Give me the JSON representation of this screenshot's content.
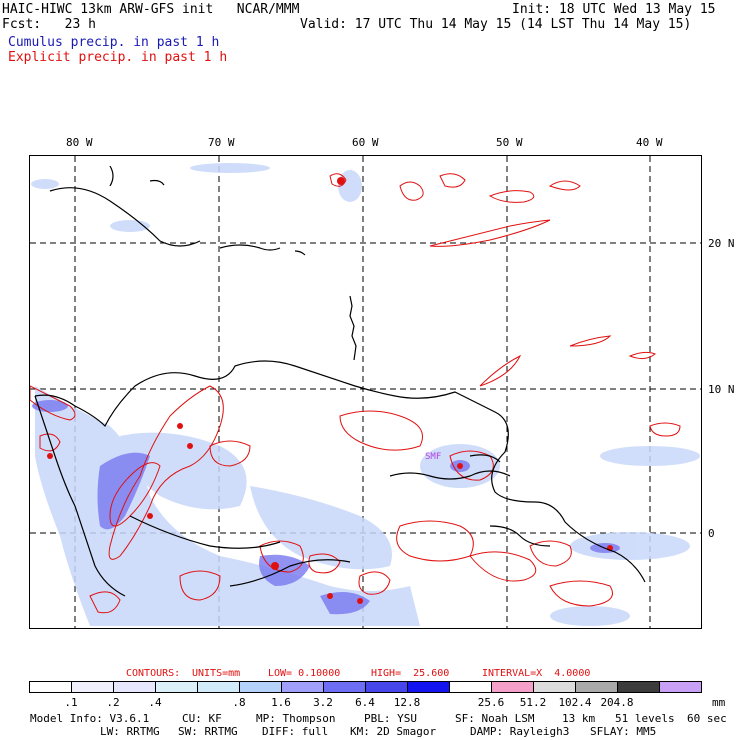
{
  "header": {
    "left_line1": "HAIC-HIWC 13km ARW-GFS init   NCAR/MMM",
    "left_line2": "Fcst:   23 h",
    "cumulus_label": "Cumulus precip. in past 1 h",
    "explicit_label": "Explicit precip. in past 1 h",
    "init_text": "Init: 18 UTC Wed 13 May 15",
    "valid_text": "Valid: 17 UTC Thu 14 May 15 (14 LST Thu 14 May 15)"
  },
  "map": {
    "lon_labels": [
      "80 W",
      "70 W",
      "60 W",
      "50 W",
      "40 W"
    ],
    "lat_labels": [
      "20 N",
      "10 N",
      "0"
    ],
    "marker_text": "SMF"
  },
  "contours": {
    "label": "CONTOURS:",
    "units": "UNITS=mm",
    "low": "LOW= 0.10000",
    "high": "HIGH=  25.600",
    "interval": "INTERVAL=X  4.0000"
  },
  "colorbar": {
    "colors": [
      "#ffffff",
      "#f0f0fc",
      "#e6e6fc",
      "#dcf0fa",
      "#d2ebfa",
      "#b4d2fa",
      "#a0a0fa",
      "#6e6ef5",
      "#4646eb",
      "#1414f0",
      "#ffffff",
      "#f5a0c8",
      "#dcdcdc",
      "#aaaaaa",
      "#3c3c3c",
      "#c8a0f5"
    ],
    "labels": [
      ".1",
      ".2",
      ".4",
      ".8",
      "1.6",
      "3.2",
      "6.4",
      "12.8",
      "25.6",
      "51.2",
      "102.4",
      "204.8"
    ],
    "unit": "mm"
  },
  "model_info": {
    "line1": [
      "Model Info: V3.6.1",
      "CU: KF",
      "MP: Thompson",
      "PBL: YSU",
      "SF: Noah LSM",
      "13 km",
      "51 levels",
      "60 sec"
    ],
    "line2": [
      "LW: RRTMG",
      "SW: RRTMG",
      "DIFF: full",
      "KM: 2D Smagor",
      "DAMP: Rayleigh3",
      "SFLAY: MM5"
    ]
  }
}
